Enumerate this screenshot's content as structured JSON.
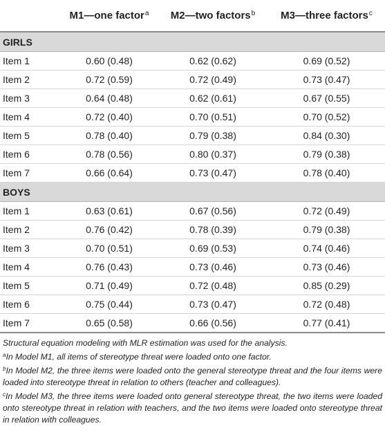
{
  "table": {
    "headers": [
      {
        "text": "",
        "sup": ""
      },
      {
        "text": "M1—one factor",
        "sup": "a"
      },
      {
        "text": "M2—two factors",
        "sup": "b"
      },
      {
        "text": "M3—three factors",
        "sup": "c"
      }
    ],
    "groups": [
      {
        "label": "GIRLS",
        "rows": [
          {
            "item": "Item 1",
            "m1": "0.60 (0.48)",
            "m2": "0.62 (0.62)",
            "m3": "0.69 (0.52)"
          },
          {
            "item": "Item 2",
            "m1": "0.72 (0.59)",
            "m2": "0.72 (0.49)",
            "m3": "0.73 (0.47)"
          },
          {
            "item": "Item 3",
            "m1": "0.64 (0.48)",
            "m2": "0.62 (0.61)",
            "m3": "0.67 (0.55)"
          },
          {
            "item": "Item 4",
            "m1": "0.72 (0.40)",
            "m2": "0.70 (0.51)",
            "m3": "0.70 (0.52)"
          },
          {
            "item": "Item 5",
            "m1": "0.78 (0.40)",
            "m2": "0.79 (0.38)",
            "m3": "0.84 (0.30)"
          },
          {
            "item": "Item 6",
            "m1": "0.78 (0.56)",
            "m2": "0.80 (0.37)",
            "m3": "0.79 (0.38)"
          },
          {
            "item": "Item 7",
            "m1": "0.66 (0.64)",
            "m2": "0.73 (0.47)",
            "m3": "0.78 (0.40)"
          }
        ]
      },
      {
        "label": "BOYS",
        "rows": [
          {
            "item": "Item 1",
            "m1": "0.63 (0.61)",
            "m2": "0.67 (0.56)",
            "m3": "0.72 (0.49)"
          },
          {
            "item": "Item 2",
            "m1": "0.76 (0.42)",
            "m2": "0.78 (0.39)",
            "m3": "0.79 (0.38)"
          },
          {
            "item": "Item 3",
            "m1": "0.70 (0.51)",
            "m2": "0.69 (0.53)",
            "m3": "0.74 (0.46)"
          },
          {
            "item": "Item 4",
            "m1": "0.76 (0.43)",
            "m2": "0.73 (0.46)",
            "m3": "0.73 (0.46)"
          },
          {
            "item": "Item 5",
            "m1": "0.71 (0.49)",
            "m2": "0.72 (0.48)",
            "m3": "0.85 (0.29)"
          },
          {
            "item": "Item 6",
            "m1": "0.75 (0.44)",
            "m2": "0.73 (0.47)",
            "m3": "0.72 (0.48)"
          },
          {
            "item": "Item 7",
            "m1": "0.65 (0.58)",
            "m2": "0.66 (0.56)",
            "m3": "0.77 (0.41)"
          }
        ]
      }
    ]
  },
  "notes": [
    {
      "sup": "",
      "text": "Structural equation modeling with MLR estimation was used for the analysis."
    },
    {
      "sup": "a",
      "text": "In Model M1, all items of stereotype threat were loaded onto one factor."
    },
    {
      "sup": "b",
      "text": "In Model M2, the three items were loaded onto the general stereotype threat and the four items were loaded into stereotype threat in relation to others (teacher and colleagues)."
    },
    {
      "sup": "c",
      "text": "In Model M3, the three items were loaded onto general stereotype threat, the two items were loaded onto stereotype threat in relation with teachers, and the two items were loaded onto stereotype threat in relation with colleagues."
    }
  ]
}
